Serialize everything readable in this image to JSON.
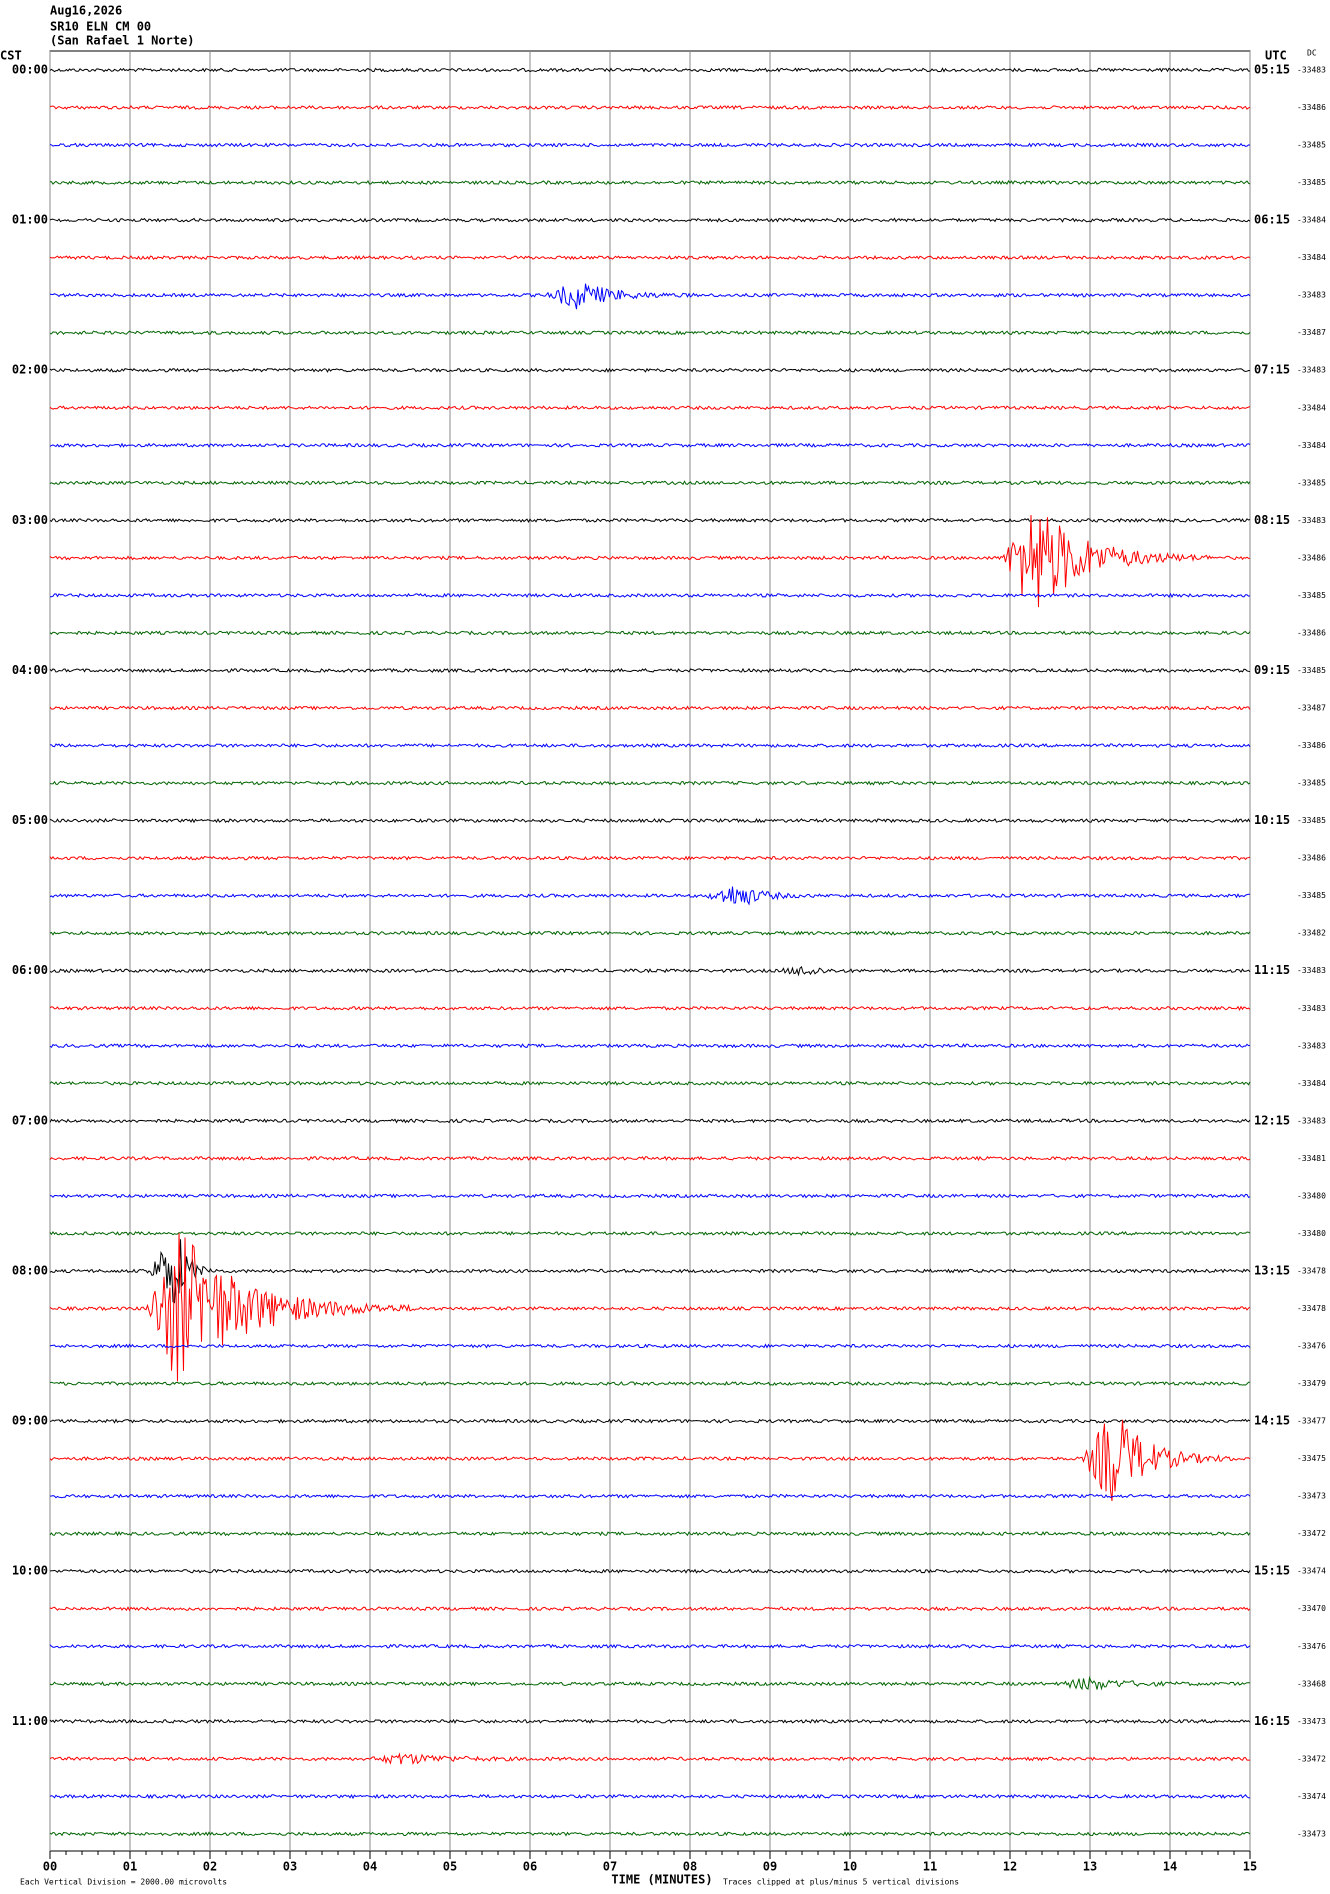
{
  "header": {
    "date": "Aug16,2026",
    "station": "SR10 ELN CM 00",
    "location": "(San Rafael 1 Norte)"
  },
  "left_axis": {
    "title": "CST",
    "labels": [
      "00:00",
      "01:00",
      "02:00",
      "03:00",
      "04:00",
      "05:00",
      "06:00",
      "07:00",
      "08:00",
      "09:00",
      "10:00",
      "11:00"
    ]
  },
  "right_axis": {
    "title": "UTC",
    "labels": [
      "05:15",
      "06:15",
      "07:15",
      "08:15",
      "09:15",
      "10:15",
      "11:15",
      "12:15",
      "13:15",
      "14:15",
      "15:15",
      "16:15"
    ]
  },
  "dc": {
    "title": "DC",
    "values": [
      "-33483",
      "-33486",
      "-33485",
      "-33485",
      "-33484",
      "-33484",
      "-33483",
      "-33487",
      "-33483",
      "-33484",
      "-33484",
      "-33485",
      "-33483",
      "-33486",
      "-33485",
      "-33486",
      "-33485",
      "-33487",
      "-33486",
      "-33485",
      "-33485",
      "-33486",
      "-33485",
      "-33482",
      "-33483",
      "-33483",
      "-33483",
      "-33484",
      "-33483",
      "-33481",
      "-33480",
      "-33480",
      "-33478",
      "-33478",
      "-33476",
      "-33479",
      "-33477",
      "-33475",
      "-33473",
      "-33472",
      "-33474",
      "-33470",
      "-33476",
      "-33468",
      "-33473",
      "-33472",
      "-33474",
      "-33473"
    ]
  },
  "x_axis": {
    "title": "TIME (MINUTES)",
    "labels": [
      "00",
      "01",
      "02",
      "03",
      "04",
      "05",
      "06",
      "07",
      "08",
      "09",
      "10",
      "11",
      "12",
      "13",
      "14",
      "15"
    ]
  },
  "footer": {
    "scale_note": "Each Vertical Division = 2000.00 microvolts",
    "clip_note": "Traces clipped at plus/minus 5 vertical divisions"
  }
}
